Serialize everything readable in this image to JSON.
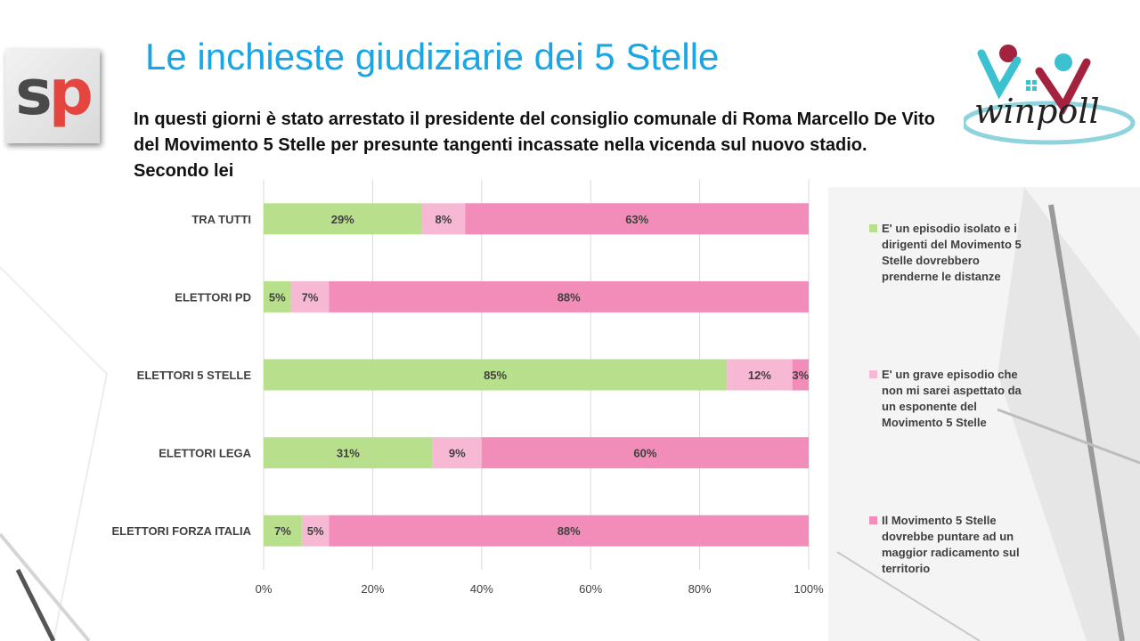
{
  "slide": {
    "title": "Le inchieste giudiziarie dei 5 Stelle",
    "question": " In questi giorni è stato arrestato il presidente del consiglio comunale di Roma Marcello De Vito del Movimento 5 Stelle per presunte tangenti incassate nella vicenda sul nuovo stadio. Secondo lei",
    "logo_left": {
      "s": "s",
      "p": "p"
    },
    "logo_right_text": "winpoll"
  },
  "colors": {
    "title": "#1aa6e4",
    "green": "#b8e08c",
    "light_pink": "#f6b8d2",
    "pink": "#f28cb8",
    "grid": "#d9d9d9"
  },
  "chart_data": {
    "type": "bar",
    "orientation": "horizontal",
    "stacked": "100%",
    "categories": [
      "TRA TUTTI",
      "ELETTORI PD",
      "ELETTORI 5 STELLE",
      "ELETTORI LEGA",
      "ELETTORI FORZA ITALIA"
    ],
    "series": [
      {
        "name": "E' un episodio isolato e i dirigenti del Movimento 5 Stelle dovrebbero prenderne le distanze",
        "color": "#b8e08c",
        "values": [
          29,
          5,
          85,
          31,
          7
        ]
      },
      {
        "name": "E' un grave episodio che non mi sarei aspettato da un esponente del Movimento 5 Stelle",
        "color": "#f6b8d2",
        "values": [
          8,
          7,
          12,
          9,
          5
        ]
      },
      {
        "name": "Il Movimento 5 Stelle dovrebbe puntare ad un maggior radicamento sul territorio",
        "color": "#f28cb8",
        "values": [
          63,
          88,
          3,
          60,
          88
        ]
      }
    ],
    "xlim": [
      0,
      100
    ],
    "xticks": [
      "0%",
      "20%",
      "40%",
      "60%",
      "80%",
      "100%"
    ],
    "grid": true,
    "legend_position": "right"
  }
}
